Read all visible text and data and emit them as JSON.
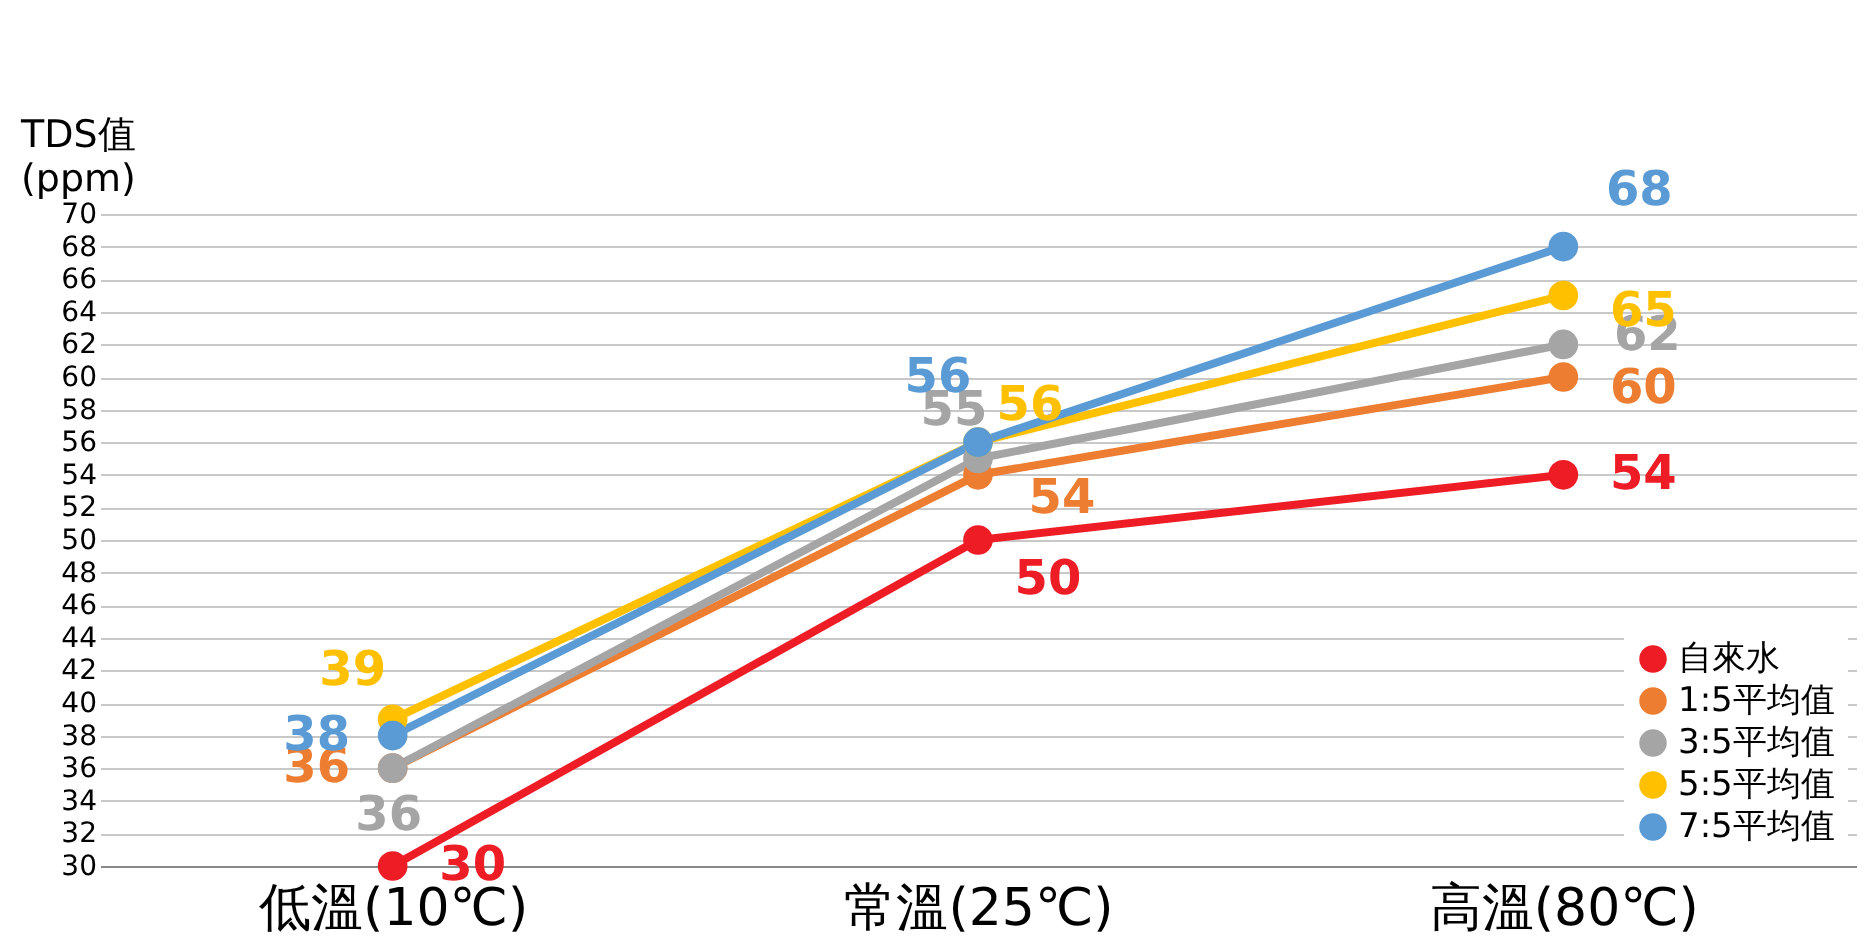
{
  "chart_data": {
    "type": "line",
    "ylabel": "TDS值\n(ppm)",
    "categories": [
      "低溫(10℃)",
      "常溫(25℃)",
      "高溫(80℃)"
    ],
    "series": [
      {
        "name": "自來水",
        "color": "#ee1c25",
        "values": [
          30,
          50,
          54
        ]
      },
      {
        "name": "1:5平均值",
        "color": "#ed7d31",
        "values": [
          36,
          54,
          60
        ]
      },
      {
        "name": "3:5平均值",
        "color": "#a5a5a5",
        "values": [
          36,
          55,
          62
        ]
      },
      {
        "name": "5:5平均值",
        "color": "#ffc000",
        "values": [
          39,
          56,
          65
        ]
      },
      {
        "name": "7:5平均值",
        "color": "#5b9bd5",
        "values": [
          38,
          56,
          68
        ]
      }
    ],
    "ylim": [
      30,
      70
    ],
    "yticks": [
      30,
      32,
      34,
      36,
      38,
      40,
      42,
      44,
      46,
      48,
      50,
      52,
      54,
      56,
      58,
      60,
      62,
      64,
      66,
      68,
      70
    ],
    "grid": "y",
    "legend": "bottom right",
    "marker": "circle",
    "line_style": "solid",
    "data_labels": true
  }
}
